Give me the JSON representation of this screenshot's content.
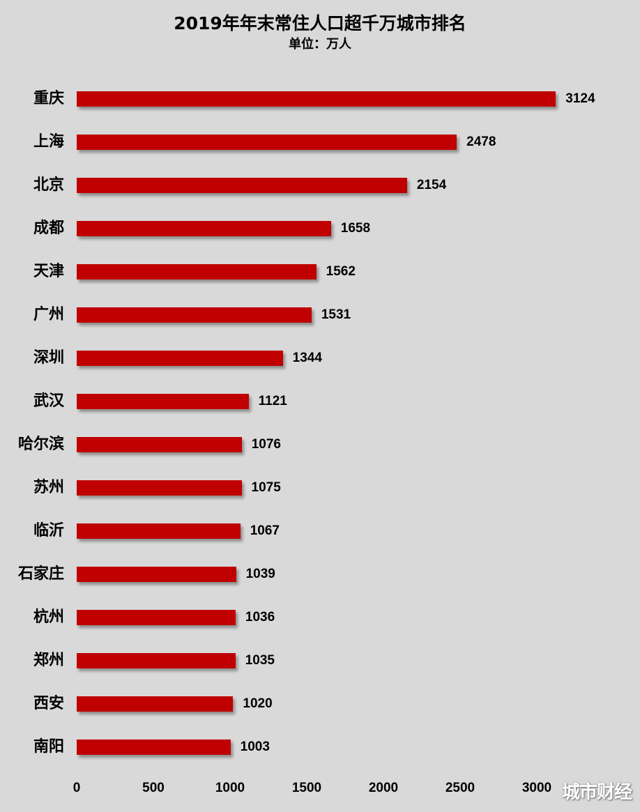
{
  "chart_data": {
    "type": "bar",
    "orientation": "horizontal",
    "title": "2019年年末常住人口超千万城市排名",
    "subtitle": "单位：万人",
    "xlabel": "",
    "ylabel": "",
    "xlim": [
      0,
      3000
    ],
    "x_ticks": [
      "0",
      "500",
      "1000",
      "1500",
      "2000",
      "2500",
      "3000"
    ],
    "grid": false,
    "legend": null,
    "bar_color": "#c00000",
    "categories": [
      "重庆",
      "上海",
      "北京",
      "成都",
      "天津",
      "广州",
      "深圳",
      "武汉",
      "哈尔滨",
      "苏州",
      "临沂",
      "石家庄",
      "杭州",
      "郑州",
      "西安",
      "南阳"
    ],
    "values": [
      3124,
      2478,
      2154,
      1658,
      1562,
      1531,
      1344,
      1121,
      1076,
      1075,
      1067,
      1039,
      1036,
      1035,
      1020,
      1003
    ]
  },
  "watermark": "城市财经"
}
